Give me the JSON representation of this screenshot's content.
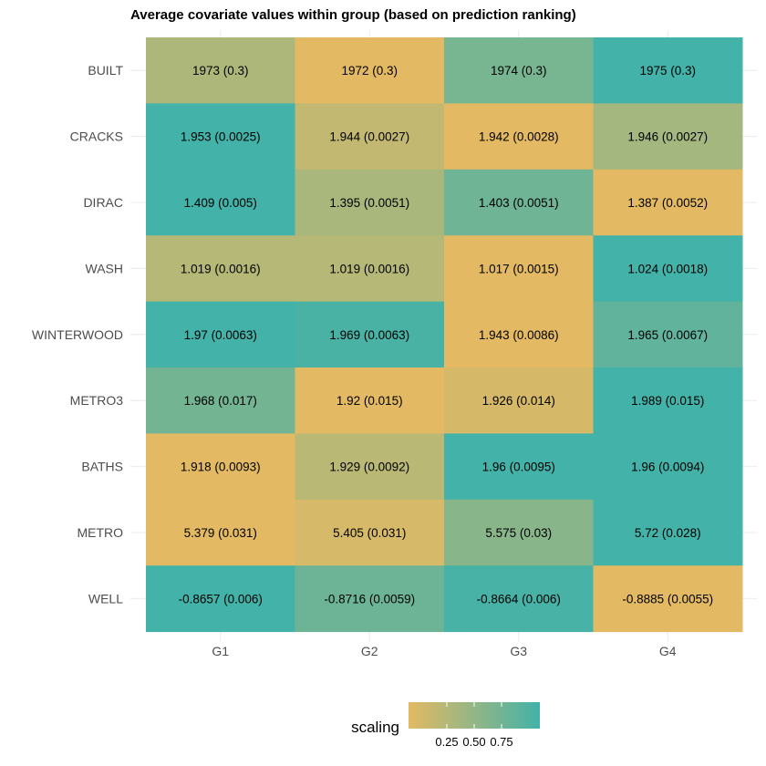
{
  "chart_data": {
    "type": "heatmap",
    "title": "Average covariate values within group (based on prediction ranking)",
    "xlabel": "",
    "ylabel": "",
    "x_categories": [
      "G1",
      "G2",
      "G3",
      "G4"
    ],
    "y_categories": [
      "BUILT",
      "CRACKS",
      "DIRAC",
      "WASH",
      "WINTERWOOD",
      "METRO3",
      "BATHS",
      "METRO",
      "WELL"
    ],
    "cells": [
      {
        "row": "BUILT",
        "labels": [
          "1973 (0.3)",
          "1972 (0.3)",
          "1974 (0.3)",
          "1975 (0.3)"
        ],
        "scaling": [
          0.33,
          0.0,
          0.67,
          1.0
        ]
      },
      {
        "row": "CRACKS",
        "labels": [
          "1.953 (0.0025)",
          "1.944 (0.0027)",
          "1.942 (0.0028)",
          "1.946 (0.0027)"
        ],
        "scaling": [
          1.0,
          0.2,
          0.0,
          0.4
        ]
      },
      {
        "row": "DIRAC",
        "labels": [
          "1.409 (0.005)",
          "1.395 (0.0051)",
          "1.403 (0.0051)",
          "1.387 (0.0052)"
        ],
        "scaling": [
          1.0,
          0.36,
          0.73,
          0.0
        ]
      },
      {
        "row": "WASH",
        "labels": [
          "1.019 (0.0016)",
          "1.019 (0.0016)",
          "1.017 (0.0015)",
          "1.024 (0.0018)"
        ],
        "scaling": [
          0.29,
          0.29,
          0.0,
          1.0
        ]
      },
      {
        "row": "WINTERWOOD",
        "labels": [
          "1.97 (0.0063)",
          "1.969 (0.0063)",
          "1.943 (0.0086)",
          "1.965 (0.0067)"
        ],
        "scaling": [
          1.0,
          0.96,
          0.0,
          0.81
        ]
      },
      {
        "row": "METRO3",
        "labels": [
          "1.968 (0.017)",
          "1.92 (0.015)",
          "1.926 (0.014)",
          "1.989 (0.015)"
        ],
        "scaling": [
          0.7,
          0.0,
          0.09,
          1.0
        ]
      },
      {
        "row": "BATHS",
        "labels": [
          "1.918 (0.0093)",
          "1.929 (0.0092)",
          "1.96 (0.0095)",
          "1.96 (0.0094)"
        ],
        "scaling": [
          0.0,
          0.26,
          1.0,
          1.0
        ]
      },
      {
        "row": "METRO",
        "labels": [
          "5.379 (0.031)",
          "5.405 (0.031)",
          "5.575 (0.03)",
          "5.72 (0.028)"
        ],
        "scaling": [
          0.0,
          0.08,
          0.57,
          1.0
        ]
      },
      {
        "row": "WELL",
        "labels": [
          "-0.8657 (0.006)",
          "-0.8716 (0.0059)",
          "-0.8664 (0.006)",
          "-0.8885 (0.0055)"
        ],
        "scaling": [
          1.0,
          0.74,
          0.97,
          0.0
        ]
      }
    ],
    "legend": {
      "title": "scaling",
      "ticks": [
        0.25,
        0.5,
        0.75
      ],
      "tick_labels": [
        "0.25",
        "0.50",
        "0.75"
      ],
      "range": [
        0,
        1
      ],
      "position": "bottom",
      "low_color": "#E3BA63",
      "high_color": "#43B2A8"
    },
    "grid": true
  }
}
